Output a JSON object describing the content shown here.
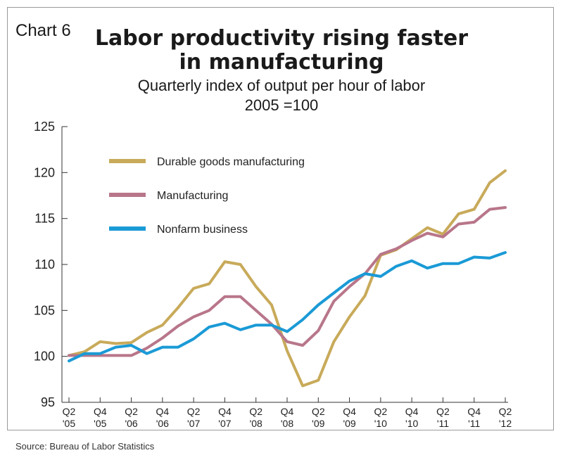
{
  "chart_number": "Chart 6",
  "source": "Source: Bureau of Labor Statistics",
  "colors": {
    "durable": "#c8aa5a",
    "manufacturing": "#b8768a",
    "nonfarm": "#1a9ad6"
  },
  "chart_data": {
    "type": "line",
    "title_line1": "Labor productivity rising faster",
    "title_line2": "in manufacturing",
    "subtitle_line1": "Quarterly index of output per hour of labor",
    "subtitle_line2": "2005 =100",
    "ylim": [
      95,
      125
    ],
    "yticks": [
      "95",
      "100",
      "105",
      "110",
      "115",
      "120",
      "125"
    ],
    "xtick_labels": [
      {
        "q": "Q2",
        "y": "'05"
      },
      {
        "q": "Q4",
        "y": "'05"
      },
      {
        "q": "Q2",
        "y": "'06"
      },
      {
        "q": "Q4",
        "y": "'06"
      },
      {
        "q": "Q2",
        "y": "'07"
      },
      {
        "q": "Q4",
        "y": "'07"
      },
      {
        "q": "Q2",
        "y": "'08"
      },
      {
        "q": "Q4",
        "y": "'08"
      },
      {
        "q": "Q2",
        "y": "'09"
      },
      {
        "q": "Q4",
        "y": "'09"
      },
      {
        "q": "Q2",
        "y": "'10"
      },
      {
        "q": "Q4",
        "y": "'10"
      },
      {
        "q": "Q2",
        "y": "'11"
      },
      {
        "q": "Q4",
        "y": "'11"
      },
      {
        "q": "Q2",
        "y": "'12"
      }
    ],
    "grid": false,
    "legend_position": "top-left",
    "series": [
      {
        "name": "Durable goods manufacturing",
        "color_key": "durable",
        "values": [
          100.1,
          100.5,
          101.6,
          101.4,
          101.5,
          102.6,
          103.4,
          105.3,
          107.4,
          107.9,
          110.3,
          110.0,
          107.6,
          105.6,
          100.6,
          96.8,
          97.4,
          101.6,
          104.3,
          106.6,
          111.0,
          111.6,
          112.8,
          114.0,
          113.3,
          115.5,
          116.0,
          118.9,
          120.2
        ]
      },
      {
        "name": "Manufacturing",
        "color_key": "manufacturing",
        "values": [
          100.1,
          100.1,
          100.1,
          100.1,
          100.1,
          100.9,
          102.0,
          103.3,
          104.3,
          105.0,
          106.5,
          106.5,
          105.0,
          103.5,
          101.6,
          101.2,
          102.8,
          106.0,
          107.6,
          109.0,
          111.1,
          111.7,
          112.6,
          113.4,
          113.0,
          114.4,
          114.6,
          116.0,
          116.2
        ]
      },
      {
        "name": "Nonfarm business",
        "color_key": "nonfarm",
        "values": [
          99.5,
          100.3,
          100.3,
          101.0,
          101.2,
          100.3,
          101.0,
          101.0,
          101.9,
          103.2,
          103.6,
          102.9,
          103.4,
          103.4,
          102.7,
          104.0,
          105.6,
          106.9,
          108.2,
          109.0,
          108.7,
          109.8,
          110.4,
          109.6,
          110.1,
          110.1,
          110.8,
          110.7,
          111.3
        ]
      }
    ]
  }
}
